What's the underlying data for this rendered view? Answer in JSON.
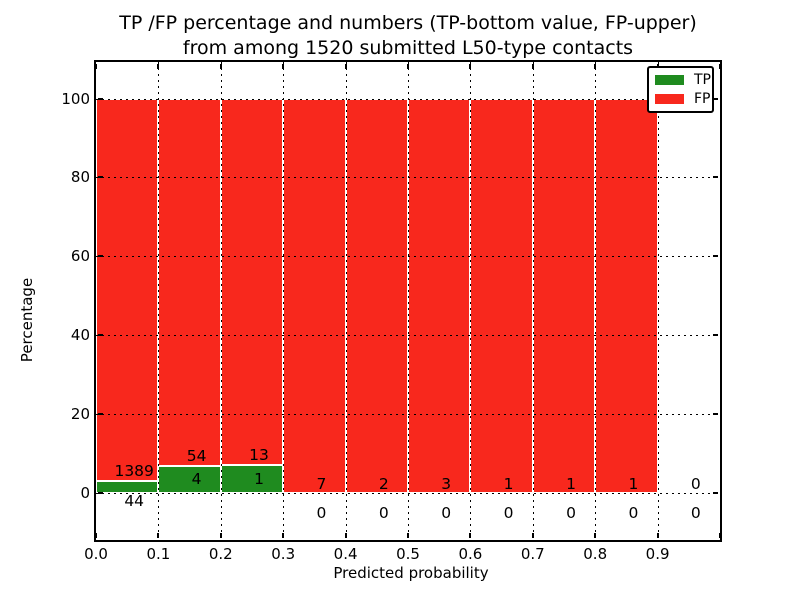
{
  "chart_data": {
    "type": "bar",
    "variant": "stacked-100-percent",
    "title_line1": "TP /FP percentage and numbers (TP-bottom value, FP-upper)",
    "title_line2": "from among 1520 submitted L50-type contacts",
    "xlabel": "Predicted probability",
    "ylabel": "Percentage",
    "x_tick_labels": [
      "0.0",
      "0.1",
      "0.2",
      "0.3",
      "0.4",
      "0.5",
      "0.6",
      "0.7",
      "0.8",
      "0.9"
    ],
    "y_tick_values": [
      0,
      20,
      40,
      60,
      80,
      100
    ],
    "xlim": [
      0.0,
      1.0
    ],
    "ylim": [
      -12,
      109
    ],
    "bin_width": 0.1,
    "bin_starts": [
      0.0,
      0.1,
      0.2,
      0.3,
      0.4,
      0.5,
      0.6,
      0.7,
      0.8,
      0.9
    ],
    "grid": {
      "style": "dotted",
      "color": "#000000",
      "on": true
    },
    "series": [
      {
        "name": "TP",
        "color": "#1f8b1f",
        "counts": [
          44,
          4,
          1,
          0,
          0,
          0,
          0,
          0,
          0,
          0
        ]
      },
      {
        "name": "FP",
        "color": "#f8281d",
        "counts": [
          1389,
          54,
          13,
          7,
          2,
          3,
          1,
          1,
          1,
          0
        ]
      }
    ],
    "tp_percent_by_bin": [
      3.07,
      6.9,
      7.14,
      0,
      0,
      0,
      0,
      0,
      0,
      null
    ],
    "bar_total_percent": [
      100,
      100,
      100,
      100,
      100,
      100,
      100,
      100,
      100,
      null
    ],
    "legend": {
      "position": "upper-right",
      "items": [
        {
          "label": "TP",
          "color": "#1f8b1f"
        },
        {
          "label": "FP",
          "color": "#f8281d"
        }
      ]
    }
  }
}
